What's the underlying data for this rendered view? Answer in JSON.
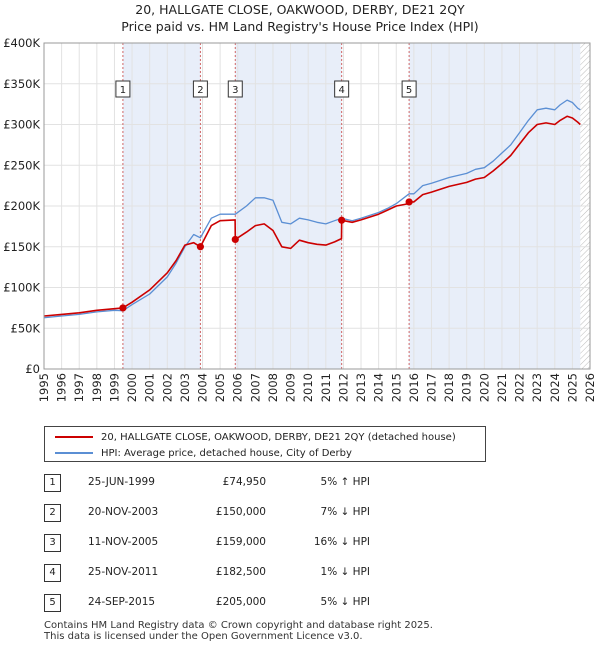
{
  "title_line1": "20, HALLGATE CLOSE, OAKWOOD, DERBY, DE21 2QY",
  "title_line2": "Price paid vs. HM Land Registry's House Price Index (HPI)",
  "legend": {
    "property": "20, HALLGATE CLOSE, OAKWOOD, DERBY, DE21 2QY (detached house)",
    "hpi": "HPI: Average price, detached house, City of Derby"
  },
  "colors": {
    "property": "#cc0000",
    "hpi": "#5b8fd4",
    "shade": "#e8eef9",
    "vline": "#d06666"
  },
  "transactions": [
    {
      "num": "1",
      "date": "25-JUN-1999",
      "price": "£74,950",
      "hpi": "5% ↑ HPI"
    },
    {
      "num": "2",
      "date": "20-NOV-2003",
      "price": "£150,000",
      "hpi": "7% ↓ HPI"
    },
    {
      "num": "3",
      "date": "11-NOV-2005",
      "price": "£159,000",
      "hpi": "16% ↓ HPI"
    },
    {
      "num": "4",
      "date": "25-NOV-2011",
      "price": "£182,500",
      "hpi": "1% ↓ HPI"
    },
    {
      "num": "5",
      "date": "24-SEP-2015",
      "price": "£205,000",
      "hpi": "5% ↓ HPI"
    }
  ],
  "footer_line1": "Contains HM Land Registry data © Crown copyright and database right 2025.",
  "footer_line2": "This data is licensed under the Open Government Licence v3.0.",
  "chart_data": {
    "type": "line",
    "title": "20, HALLGATE CLOSE, OAKWOOD, DERBY, DE21 2QY",
    "subtitle": "Price paid vs. HM Land Registry's House Price Index (HPI)",
    "xlabel": "",
    "ylabel": "",
    "xlim": [
      1995,
      2026
    ],
    "ylim": [
      0,
      400000
    ],
    "x_ticks": [
      1995,
      1996,
      1997,
      1998,
      1999,
      2000,
      2001,
      2002,
      2003,
      2004,
      2005,
      2006,
      2007,
      2008,
      2009,
      2010,
      2011,
      2012,
      2013,
      2014,
      2015,
      2016,
      2017,
      2018,
      2019,
      2020,
      2021,
      2022,
      2023,
      2024,
      2025,
      2026
    ],
    "y_ticks": [
      {
        "value": 0,
        "label": "£0"
      },
      {
        "value": 50000,
        "label": "£50K"
      },
      {
        "value": 100000,
        "label": "£100K"
      },
      {
        "value": 150000,
        "label": "£150K"
      },
      {
        "value": 200000,
        "label": "£200K"
      },
      {
        "value": 250000,
        "label": "£250K"
      },
      {
        "value": 300000,
        "label": "£300K"
      },
      {
        "value": 350000,
        "label": "£350K"
      },
      {
        "value": 400000,
        "label": "£400K"
      }
    ],
    "grid": true,
    "shaded_spans": [
      [
        1999.48,
        2003.88
      ],
      [
        2005.86,
        2011.9
      ],
      [
        2015.73,
        2025.45
      ]
    ],
    "hatched_span": [
      2025.45,
      2026
    ],
    "markers": [
      {
        "label": "1",
        "x": 1999.48,
        "y": 74950
      },
      {
        "label": "2",
        "x": 2003.88,
        "y": 150000
      },
      {
        "label": "3",
        "x": 2005.86,
        "y": 159000
      },
      {
        "label": "4",
        "x": 2011.9,
        "y": 182500
      },
      {
        "label": "5",
        "x": 2015.73,
        "y": 205000
      }
    ],
    "series": [
      {
        "name": "HPI: Average price, detached house, City of Derby",
        "x": [
          1995,
          1996,
          1997,
          1998,
          1999,
          1999.48,
          2000,
          2001,
          2002,
          2002.5,
          2003,
          2003.5,
          2003.88,
          2004.5,
          2005,
          2005.86,
          2006.5,
          2007,
          2007.5,
          2008,
          2008.5,
          2009,
          2009.5,
          2010,
          2010.5,
          2011,
          2011.5,
          2011.9,
          2012.5,
          2013,
          2014,
          2014.5,
          2015,
          2015.73,
          2016,
          2016.5,
          2017,
          2018,
          2019,
          2019.5,
          2020,
          2020.5,
          2021,
          2021.5,
          2022,
          2022.5,
          2023,
          2023.5,
          2024,
          2024.3,
          2024.7,
          2025,
          2025.3,
          2025.45
        ],
        "values": [
          63000,
          65000,
          67000,
          70000,
          72000,
          71500,
          79000,
          92000,
          113000,
          130000,
          150000,
          165000,
          161000,
          185000,
          190000,
          190000,
          200000,
          210000,
          210000,
          207000,
          180000,
          178000,
          185000,
          183000,
          180000,
          178000,
          182000,
          185000,
          182000,
          185000,
          192000,
          197000,
          203000,
          215000,
          215000,
          225000,
          228000,
          235000,
          240000,
          245000,
          247000,
          255000,
          265000,
          275000,
          290000,
          305000,
          318000,
          320000,
          318000,
          324000,
          330000,
          327000,
          320000,
          318000
        ]
      },
      {
        "name": "20, HALLGATE CLOSE, OAKWOOD, DERBY, DE21 2QY (detached house)",
        "x": [
          1995,
          1996,
          1997,
          1998,
          1999,
          1999.48,
          2000,
          2001,
          2002,
          2002.5,
          2003,
          2003.5,
          2003.88,
          2004.5,
          2005,
          2005.85,
          2005.86,
          2006.5,
          2007,
          2007.5,
          2008,
          2008.5,
          2009,
          2009.5,
          2010,
          2010.5,
          2011,
          2011.5,
          2011.89,
          2011.9,
          2012.5,
          2013,
          2014,
          2014.5,
          2015,
          2015.72,
          2015.73,
          2016,
          2016.5,
          2017,
          2018,
          2019,
          2019.5,
          2020,
          2020.5,
          2021,
          2021.5,
          2022,
          2022.5,
          2023,
          2023.5,
          2024,
          2024.3,
          2024.7,
          2025,
          2025.3,
          2025.45
        ],
        "values": [
          65000,
          67000,
          69000,
          72000,
          74000,
          74950,
          82000,
          97000,
          118000,
          133000,
          152000,
          155000,
          150000,
          176000,
          182000,
          183000,
          159000,
          168000,
          176000,
          178000,
          170000,
          150000,
          148000,
          158000,
          155000,
          153000,
          152000,
          156000,
          160000,
          182500,
          180000,
          183000,
          190000,
          195000,
          200000,
          203000,
          205000,
          205000,
          214000,
          217000,
          224000,
          229000,
          233000,
          235000,
          243000,
          252000,
          262000,
          276000,
          290000,
          300000,
          302000,
          300000,
          305000,
          310000,
          308000,
          303000,
          300000
        ]
      }
    ]
  }
}
